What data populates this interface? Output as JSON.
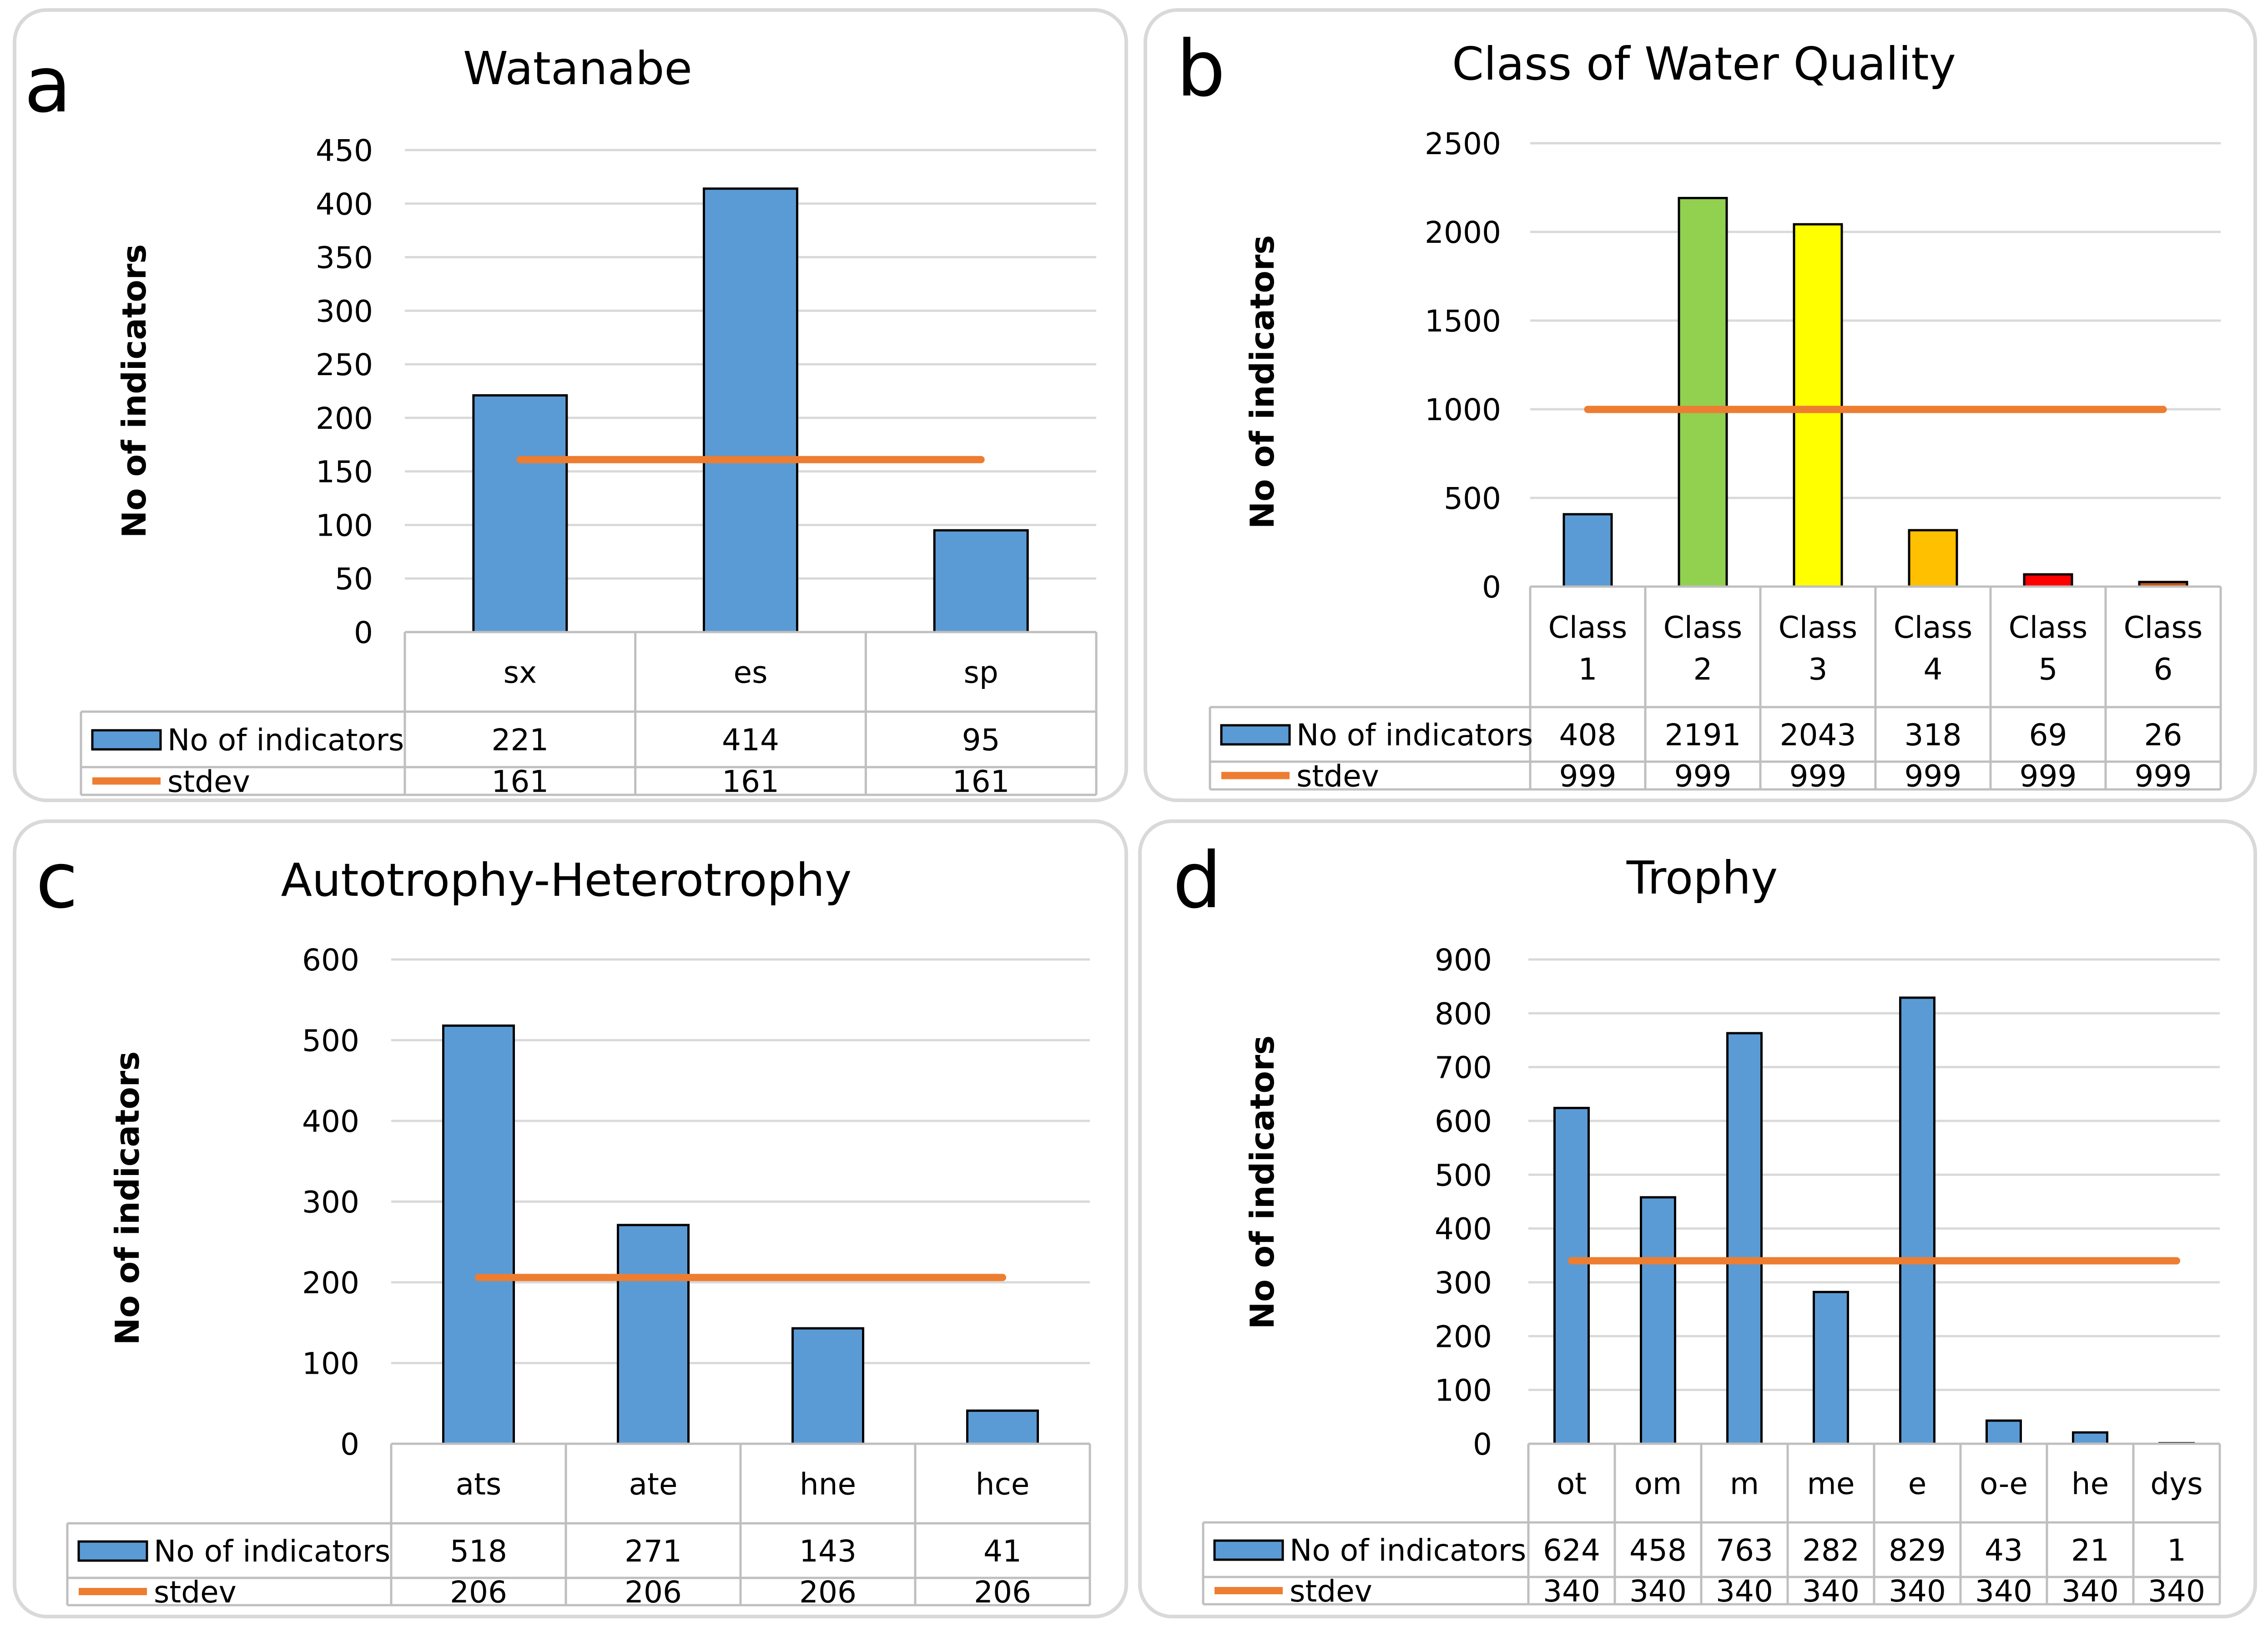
{
  "chart_data": [
    {
      "type": "bar",
      "panel_letter": "a",
      "title": "Watanabe",
      "ylabel": "No of indicators",
      "ylim": [
        0,
        450
      ],
      "yticks": [
        "0",
        "50",
        "100",
        "150",
        "200",
        "250",
        "300",
        "350",
        "400",
        "450"
      ],
      "categories": [
        "sx",
        "es",
        "sp"
      ],
      "series": [
        {
          "name": "No of indicators",
          "kind": "bar",
          "values": [
            221,
            414,
            95
          ],
          "colors": [
            "#5B9BD5",
            "#5B9BD5",
            "#5B9BD5"
          ]
        },
        {
          "name": "stdev",
          "kind": "line",
          "values": [
            161,
            161,
            161
          ],
          "color": "#ED7D31"
        }
      ],
      "grid": true,
      "legend": "data-table"
    },
    {
      "type": "bar",
      "panel_letter": "b",
      "title": "Class of Water Quality",
      "ylabel": "No of indicators",
      "ylim": [
        0,
        2500
      ],
      "yticks": [
        "0",
        "500",
        "1000",
        "1500",
        "2000",
        "2500"
      ],
      "categories": [
        "Class 1",
        "Class 2",
        "Class 3",
        "Class 4",
        "Class 5",
        "Class 6"
      ],
      "series": [
        {
          "name": "No of indicators",
          "kind": "bar",
          "values": [
            408,
            2191,
            2043,
            318,
            69,
            26
          ],
          "colors": [
            "#5B9BD5",
            "#92D050",
            "#FFFF00",
            "#FFC000",
            "#FF0000",
            "#C55A11"
          ]
        },
        {
          "name": "stdev",
          "kind": "line",
          "values": [
            999,
            999,
            999,
            999,
            999,
            999
          ],
          "color": "#ED7D31"
        }
      ],
      "grid": true,
      "legend": "data-table"
    },
    {
      "type": "bar",
      "panel_letter": "c",
      "title": "Autotrophy-Heterotrophy",
      "ylabel": "No of indicators",
      "ylim": [
        0,
        600
      ],
      "yticks": [
        "0",
        "100",
        "200",
        "300",
        "400",
        "500",
        "600"
      ],
      "categories": [
        "ats",
        "ate",
        "hne",
        "hce"
      ],
      "series": [
        {
          "name": "No of indicators",
          "kind": "bar",
          "values": [
            518,
            271,
            143,
            41
          ],
          "colors": [
            "#5B9BD5",
            "#5B9BD5",
            "#5B9BD5",
            "#5B9BD5"
          ]
        },
        {
          "name": "stdev",
          "kind": "line",
          "values": [
            206,
            206,
            206,
            206
          ],
          "color": "#ED7D31"
        }
      ],
      "grid": true,
      "legend": "data-table"
    },
    {
      "type": "bar",
      "panel_letter": "d",
      "title": "Trophy",
      "ylabel": "No of indicators",
      "ylim": [
        0,
        900
      ],
      "yticks": [
        "0",
        "100",
        "200",
        "300",
        "400",
        "500",
        "600",
        "700",
        "800",
        "900"
      ],
      "categories": [
        "ot",
        "om",
        "m",
        "me",
        "e",
        "o-e",
        "he",
        "dys"
      ],
      "series": [
        {
          "name": "No of indicators",
          "kind": "bar",
          "values": [
            624,
            458,
            763,
            282,
            829,
            43,
            21,
            1
          ],
          "colors": [
            "#5B9BD5",
            "#5B9BD5",
            "#5B9BD5",
            "#5B9BD5",
            "#5B9BD5",
            "#5B9BD5",
            "#5B9BD5",
            "#5B9BD5"
          ]
        },
        {
          "name": "stdev",
          "kind": "line",
          "values": [
            340,
            340,
            340,
            340,
            340,
            340,
            340,
            340
          ],
          "color": "#ED7D31"
        }
      ],
      "grid": true,
      "legend": "data-table"
    }
  ]
}
